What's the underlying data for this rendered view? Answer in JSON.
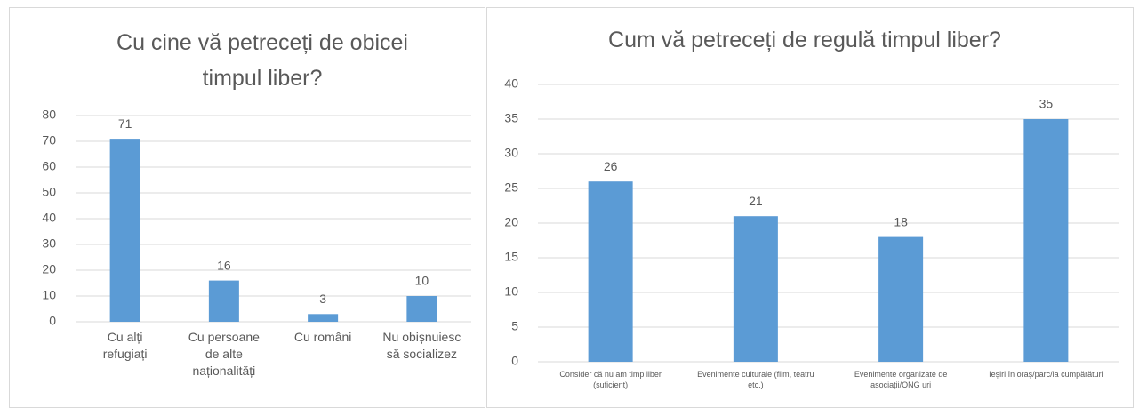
{
  "chart_data": [
    {
      "type": "bar",
      "title": "Cu cine vă petreceți de obicei timpul liber?",
      "categories": [
        "Cu alți refugiați",
        "Cu persoane de alte naționalități",
        "Cu români",
        "Nu obișnuiesc să socializez"
      ],
      "values": [
        71,
        16,
        3,
        10
      ],
      "color": "#5b9bd5",
      "ylim": [
        0,
        80
      ],
      "yticks": [
        0,
        10,
        20,
        30,
        40,
        50,
        60,
        70,
        80
      ],
      "grid": true
    },
    {
      "type": "bar",
      "title": "Cum vă petreceți de regulă timpul liber?",
      "categories": [
        "Consider că nu am timp liber (suficient)",
        "Evenimente culturale (film, teatru etc.)",
        "Evenimente organizate de asociații/ONG uri",
        "Ieșiri în oraș/parc/la cumpărături"
      ],
      "values": [
        26,
        21,
        18,
        35
      ],
      "color": "#5b9bd5",
      "ylim": [
        0,
        40
      ],
      "yticks": [
        0,
        5,
        10,
        15,
        20,
        25,
        30,
        35,
        40
      ],
      "grid": true
    }
  ]
}
